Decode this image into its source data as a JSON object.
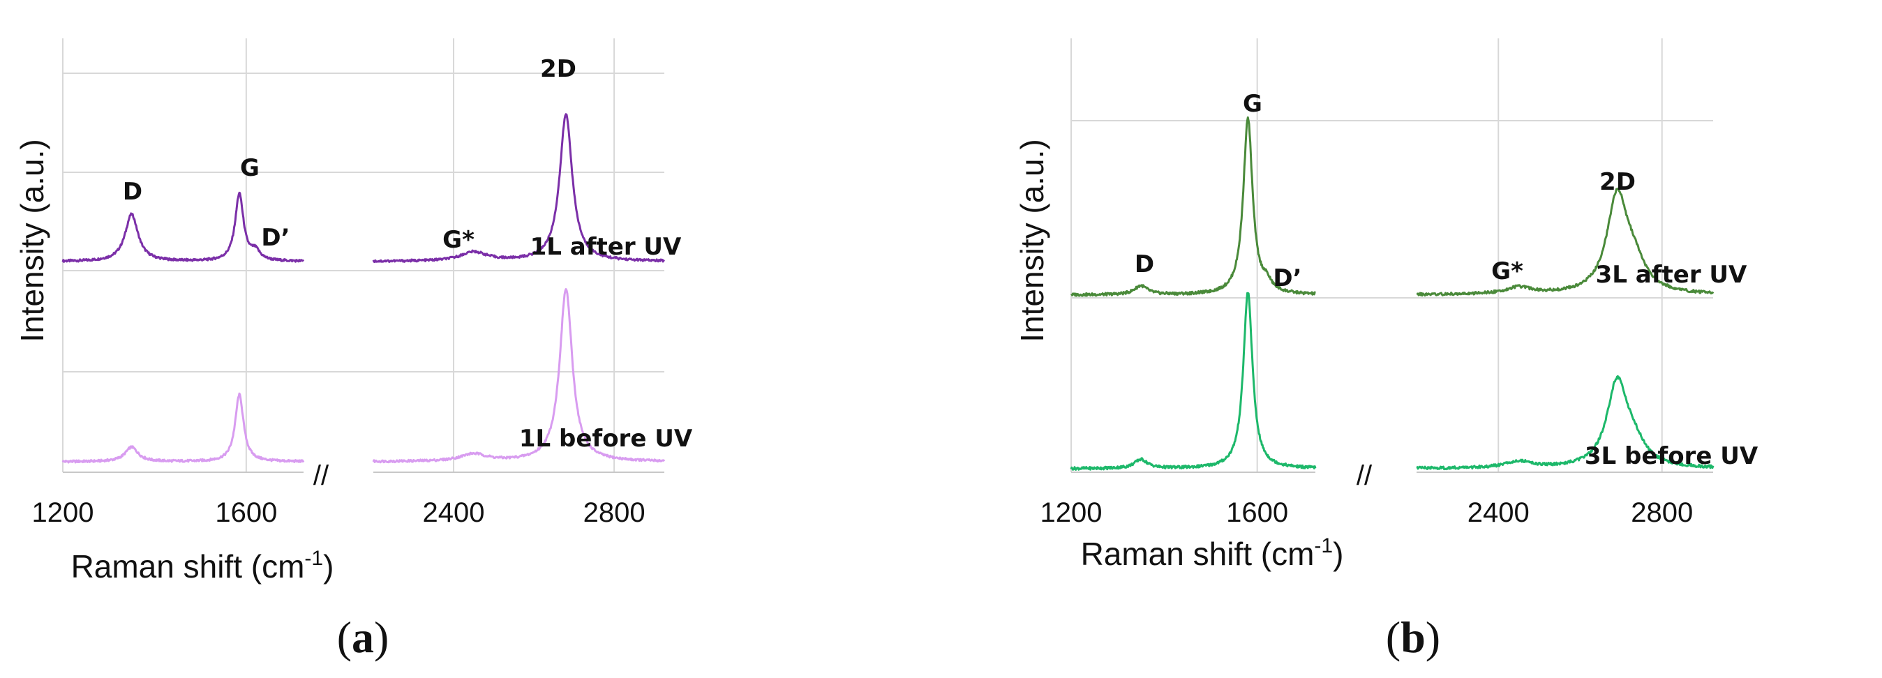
{
  "chart_data": [
    {
      "type": "line",
      "panel": "a",
      "xlabel": "Raman shift (cm",
      "xlabel_sup": "-1",
      "xlabel_close": ")",
      "ylabel": "Intensity (a.u.)",
      "xlim_segments": [
        [
          1200,
          1725
        ],
        [
          2200,
          2925
        ]
      ],
      "xticks": [
        1200,
        1600,
        2400,
        2800
      ],
      "y_units": "a.u. (stacked offset traces)",
      "grid": true,
      "break_symbol": "//",
      "peaks": [
        {
          "label": "D",
          "x": 1350
        },
        {
          "label": "G",
          "x": 1585
        },
        {
          "label": "D’",
          "x": 1620
        },
        {
          "label": "G*",
          "x": 2450
        },
        {
          "label": "2D",
          "x": 2680
        }
      ],
      "series": [
        {
          "name": "1L after UV",
          "color": "#7b2fa8",
          "peaks": [
            {
              "x": 1350,
              "height": 0.26,
              "width": 17
            },
            {
              "x": 1585,
              "height": 0.37,
              "width": 11
            },
            {
              "x": 1620,
              "height": 0.05,
              "width": 12
            },
            {
              "x": 2450,
              "height": 0.05,
              "width": 40
            },
            {
              "x": 2680,
              "height": 0.81,
              "width": 19
            }
          ]
        },
        {
          "name": "1L before UV",
          "color": "#d89cf0",
          "peaks": [
            {
              "x": 1350,
              "height": 0.08,
              "width": 17
            },
            {
              "x": 1585,
              "height": 0.37,
              "width": 11
            },
            {
              "x": 2450,
              "height": 0.04,
              "width": 40
            },
            {
              "x": 2680,
              "height": 0.95,
              "width": 19
            }
          ]
        }
      ],
      "panel_label": "a"
    },
    {
      "type": "line",
      "panel": "b",
      "xlabel": "Raman shift (cm",
      "xlabel_sup": "-1",
      "xlabel_close": ")",
      "ylabel": "Intensity (a.u.)",
      "xlim_segments": [
        [
          1200,
          1725
        ],
        [
          2200,
          2925
        ]
      ],
      "xticks": [
        1200,
        1600,
        2400,
        2800
      ],
      "y_units": "a.u. (stacked offset traces)",
      "grid": true,
      "break_symbol": "//",
      "peaks": [
        {
          "label": "D",
          "x": 1350
        },
        {
          "label": "G",
          "x": 1580
        },
        {
          "label": "D’",
          "x": 1620
        },
        {
          "label": "G*",
          "x": 2450
        },
        {
          "label": "2D",
          "x": 2690
        }
      ],
      "series": [
        {
          "name": "3L after UV",
          "color": "#4a8a3a",
          "peaks": [
            {
              "x": 1350,
              "height": 0.04,
              "width": 17
            },
            {
              "x": 1580,
              "height": 0.79,
              "width": 12
            },
            {
              "x": 1620,
              "height": 0.04,
              "width": 12
            },
            {
              "x": 2450,
              "height": 0.03,
              "width": 40
            },
            {
              "x": 2690,
              "height": 0.42,
              "width": 30
            },
            {
              "x": 2730,
              "height": 0.12,
              "width": 35
            }
          ]
        },
        {
          "name": "3L before UV",
          "color": "#1db86a",
          "peaks": [
            {
              "x": 1350,
              "height": 0.04,
              "width": 17
            },
            {
              "x": 1580,
              "height": 0.79,
              "width": 12
            },
            {
              "x": 2450,
              "height": 0.03,
              "width": 40
            },
            {
              "x": 2690,
              "height": 0.37,
              "width": 30
            },
            {
              "x": 2730,
              "height": 0.09,
              "width": 35
            }
          ]
        }
      ],
      "panel_label": "b"
    }
  ]
}
